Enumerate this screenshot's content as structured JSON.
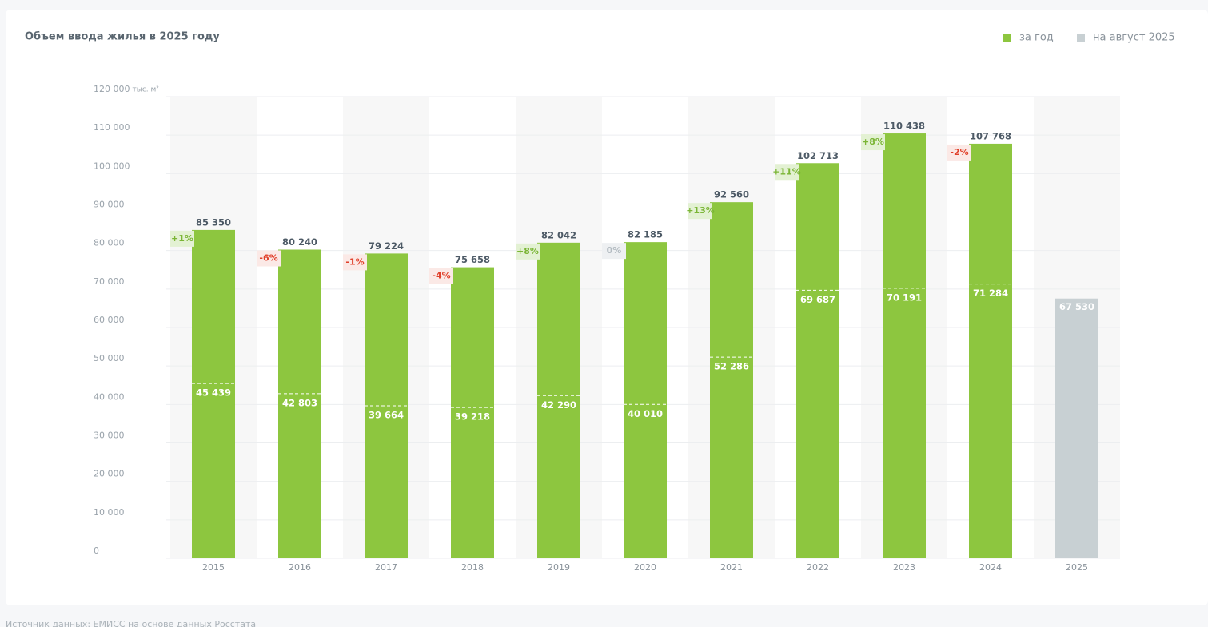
{
  "chart_data": {
    "type": "bar",
    "title": "Объем ввода жилья в 2025 году",
    "y_unit": "тыс. м²",
    "source": "Источник данных: ЕМИСС на основе данных Росстата",
    "categories": [
      "2015",
      "2016",
      "2017",
      "2018",
      "2019",
      "2020",
      "2021",
      "2022",
      "2023",
      "2024",
      "2025"
    ],
    "series": [
      {
        "name": "за год",
        "color": "#8dc63f",
        "values": [
          85350,
          80240,
          79224,
          75658,
          82042,
          82185,
          92560,
          102713,
          110438,
          107768,
          null
        ],
        "value_labels": [
          "85 350",
          "80 240",
          "79 224",
          "75 658",
          "82 042",
          "82 185",
          "92 560",
          "102 713",
          "110 438",
          "107 768",
          null
        ]
      },
      {
        "name": "на август 2025",
        "color": "#c8d0d3",
        "values": [
          45439,
          42803,
          39664,
          39218,
          42290,
          40010,
          52286,
          69687,
          70191,
          71284,
          67530
        ],
        "value_labels": [
          "45 439",
          "42 803",
          "39 664",
          "39 218",
          "42 290",
          "40 010",
          "52 286",
          "69 687",
          "70 191",
          "71 284",
          "67 530"
        ]
      }
    ],
    "changes": {
      "values": [
        1,
        -6,
        -1,
        -4,
        8,
        0,
        13,
        11,
        8,
        -2,
        null
      ],
      "value_labels": [
        "+1%",
        "-6%",
        "-1%",
        "-4%",
        "+8%",
        "0%",
        "+13%",
        "+11%",
        "+8%",
        "-2%",
        null
      ]
    },
    "ylim": [
      0,
      120000
    ],
    "yticks": [
      0,
      {
        "value": 10000,
        "label": "10 000"
      },
      {
        "value": 20000,
        "label": "20 000"
      },
      {
        "value": 30000,
        "label": "30 000"
      },
      {
        "value": 40000,
        "label": "40 000"
      },
      {
        "value": 50000,
        "label": "50 000"
      },
      {
        "value": 60000,
        "label": "60 000"
      },
      {
        "value": 70000,
        "label": "70 000"
      },
      {
        "value": 80000,
        "label": "80 000"
      },
      {
        "value": 90000,
        "label": "90 000"
      },
      {
        "value": 100000,
        "label": "100 000"
      },
      {
        "value": 110000,
        "label": "110 000"
      },
      {
        "value": 120000,
        "label": "120 000"
      }
    ],
    "grid": true,
    "legend": "top-right"
  }
}
